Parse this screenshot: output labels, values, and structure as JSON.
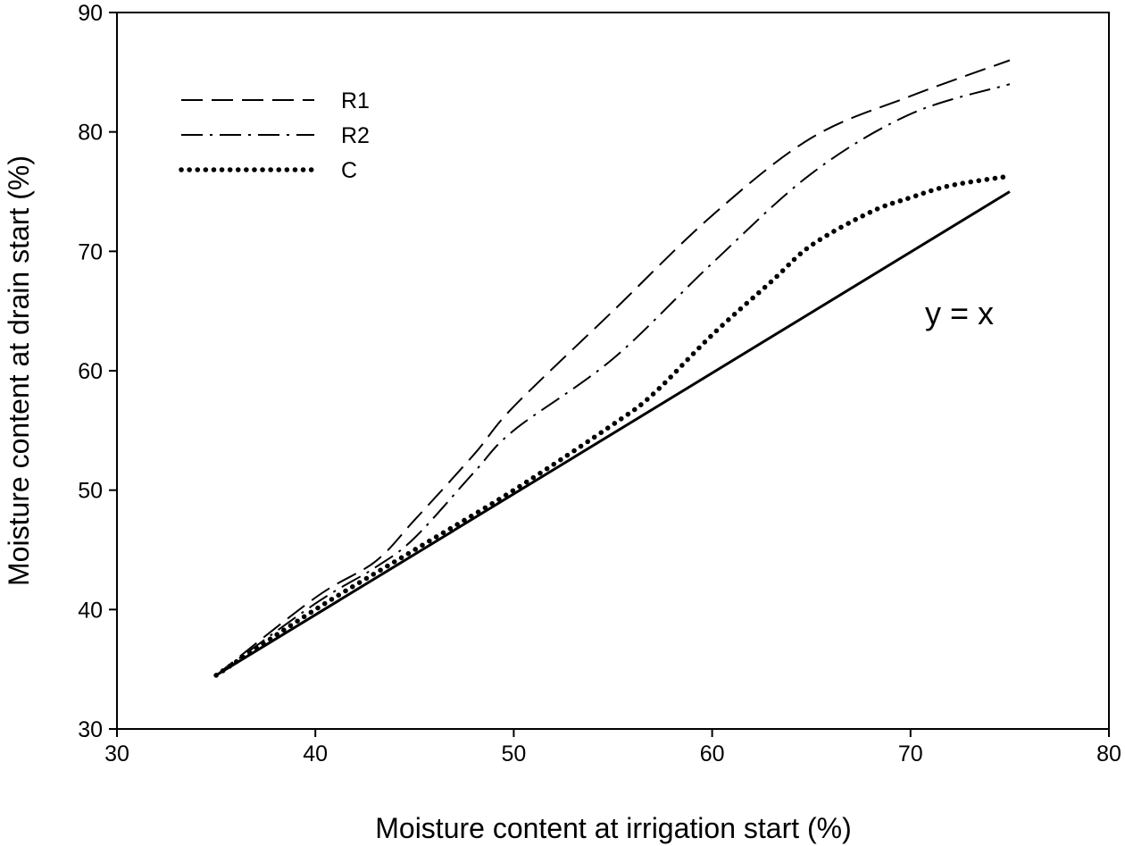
{
  "chart_data": {
    "type": "line",
    "title": "",
    "xlabel": "Moisture content at irrigation start (%)",
    "ylabel": "Moisture content at drain start (%)",
    "xlim": [
      30,
      80
    ],
    "ylim": [
      30,
      90
    ],
    "x_ticks": [
      30,
      40,
      50,
      60,
      70,
      80
    ],
    "y_ticks": [
      30,
      40,
      50,
      60,
      70,
      80,
      90
    ],
    "grid": false,
    "legend_position": "top-left",
    "annotation": "y = x",
    "series": [
      {
        "name": "R1",
        "style": "dashed",
        "x": [
          35,
          40,
          43,
          45,
          48,
          50,
          55,
          60,
          65,
          70,
          75
        ],
        "y": [
          34.5,
          41,
          44,
          47.5,
          53,
          57,
          65,
          73,
          79.5,
          83,
          86
        ]
      },
      {
        "name": "R2",
        "style": "dashdot",
        "x": [
          35,
          40,
          43,
          45,
          48,
          50,
          55,
          60,
          65,
          70,
          75
        ],
        "y": [
          34.5,
          40.5,
          43.5,
          46,
          51.5,
          55,
          61,
          69,
          76.5,
          81.5,
          84
        ]
      },
      {
        "name": "C",
        "style": "dotted",
        "x": [
          35,
          40,
          45,
          50,
          55,
          57,
          60,
          63,
          65,
          68,
          70,
          72,
          75
        ],
        "y": [
          34.5,
          40,
          45,
          50,
          55.5,
          58,
          63,
          67.5,
          70.5,
          73.3,
          74.5,
          75.5,
          76.3
        ]
      },
      {
        "name": "y = x",
        "style": "solid",
        "x": [
          35,
          75
        ],
        "y": [
          34.5,
          75
        ]
      }
    ]
  }
}
